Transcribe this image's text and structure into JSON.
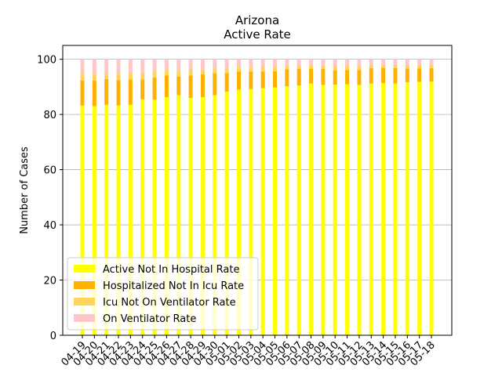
{
  "chart_data": {
    "type": "bar",
    "stacked": true,
    "title": "Arizona",
    "subtitle": "Active Rate",
    "xlabel": "",
    "ylabel": "Number of Cases",
    "ylim": [
      0,
      105
    ],
    "yticks": [
      0,
      20,
      40,
      60,
      80,
      100
    ],
    "grid": "horizontal",
    "legend_position": "lower-left",
    "categories": [
      "04-19",
      "04-20",
      "04-21",
      "04-22",
      "04-23",
      "04-24",
      "04-25",
      "04-26",
      "04-27",
      "04-28",
      "04-29",
      "04-30",
      "05-01",
      "05-02",
      "05-03",
      "05-04",
      "05-05",
      "05-06",
      "05-07",
      "05-08",
      "05-09",
      "05-10",
      "05-11",
      "05-12",
      "05-13",
      "05-14",
      "05-15",
      "05-16",
      "05-17",
      "05-18"
    ],
    "series": [
      {
        "name": "Active Not In Hospital Rate",
        "color": "#ffff00",
        "values": [
          83.2,
          83.0,
          83.5,
          83.3,
          83.5,
          85.5,
          85.3,
          86.3,
          87.0,
          86.0,
          86.3,
          87.0,
          88.3,
          89.0,
          89.2,
          89.5,
          89.8,
          90.2,
          90.5,
          91.2,
          90.7,
          90.8,
          90.9,
          90.7,
          91.2,
          91.3,
          91.2,
          91.7,
          91.8,
          91.9
        ]
      },
      {
        "name": "Hospitalized Not In Icu Rate",
        "color": "#ffb000",
        "values": [
          9.1,
          9.3,
          9.3,
          9.1,
          9.2,
          7.2,
          8.1,
          7.8,
          6.7,
          8.1,
          8.2,
          7.9,
          6.7,
          6.5,
          6.4,
          6.1,
          5.9,
          6.2,
          6.0,
          5.3,
          5.8,
          5.1,
          5.2,
          5.4,
          5.6,
          5.6,
          5.6,
          5.0,
          4.9,
          4.9
        ]
      },
      {
        "name": "Icu Not On Ventilator Rate",
        "color": "#ffd35c",
        "values": [
          2.5,
          2.4,
          2.3,
          2.6,
          2.4,
          2.4,
          2.2,
          2.0,
          2.2,
          2.1,
          1.8,
          1.9,
          1.8,
          1.6,
          1.6,
          1.6,
          1.5,
          1.2,
          1.3,
          1.3,
          1.2,
          1.6,
          1.5,
          1.5,
          1.2,
          1.1,
          1.2,
          1.3,
          1.3,
          1.2
        ]
      },
      {
        "name": "On Ventilator Rate",
        "color": "#ffc8c8",
        "values": [
          5.2,
          5.3,
          4.9,
          5.0,
          4.9,
          4.9,
          4.4,
          3.9,
          4.1,
          3.8,
          3.7,
          3.2,
          3.2,
          2.9,
          2.8,
          2.8,
          2.8,
          2.4,
          2.2,
          2.2,
          2.3,
          2.5,
          2.4,
          2.4,
          2.0,
          2.0,
          2.0,
          2.0,
          2.0,
          2.0
        ]
      }
    ]
  }
}
